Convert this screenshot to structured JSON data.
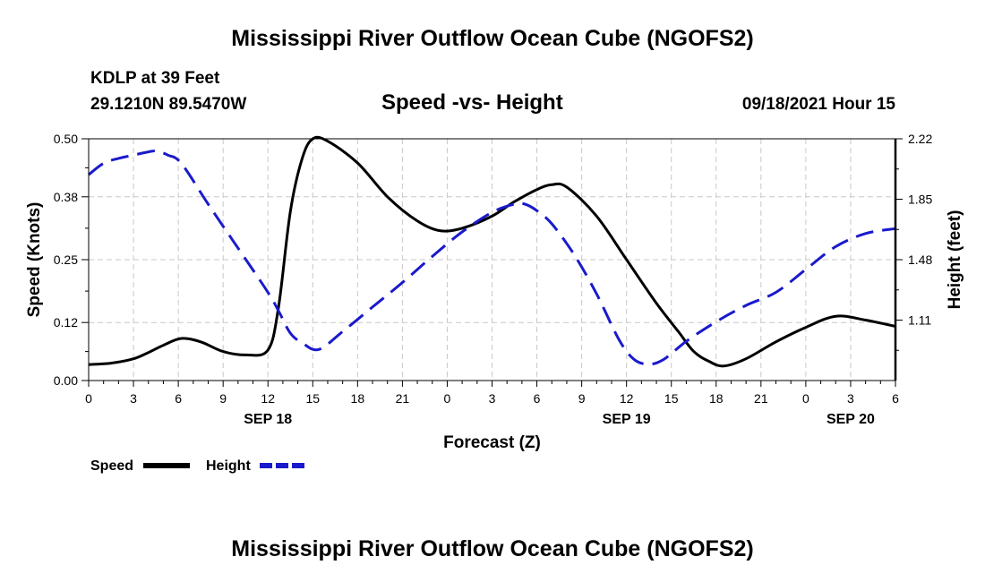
{
  "header": {
    "title": "Mississippi River Outflow Ocean Cube (NGOFS2)",
    "station": "KDLP at 39 Feet",
    "coords": "29.1210N  89.5470W",
    "chart_title": "Speed -vs- Height",
    "datetime": "09/18/2021 Hour 15"
  },
  "footer": {
    "title": "Mississippi River Outflow Ocean Cube (NGOFS2)"
  },
  "colors": {
    "speed": "#000000",
    "height": "#1a1acc",
    "grid": "#c8c8c8"
  },
  "chart_data": {
    "type": "line",
    "title": "Speed -vs- Height",
    "xlabel": "Forecast (Z)",
    "ylabel": "Speed (Knots)",
    "y2label": "Height (feet)",
    "x_range_hours": [
      0,
      54
    ],
    "x_tick_hours": [
      0,
      3,
      6,
      9,
      12,
      15,
      18,
      21,
      24,
      27,
      30,
      33,
      36,
      39,
      42,
      45,
      48,
      51,
      54
    ],
    "x_tick_labels": [
      "0",
      "3",
      "6",
      "9",
      "12",
      "15",
      "18",
      "21",
      "0",
      "3",
      "6",
      "9",
      "12",
      "15",
      "18",
      "21",
      "0",
      "3",
      "6"
    ],
    "date_labels": [
      {
        "hour": 12,
        "label": "SEP 18"
      },
      {
        "hour": 36,
        "label": "SEP 19"
      },
      {
        "hour": 51,
        "label": "SEP 20"
      }
    ],
    "ylim": [
      0.0,
      0.5
    ],
    "y_ticks": [
      0.0,
      0.12,
      0.25,
      0.38,
      0.5
    ],
    "y_tick_labels": [
      "0.00",
      "0.12",
      "0.25",
      "0.38",
      "0.50"
    ],
    "y2lim": [
      0.74,
      2.22
    ],
    "y2_ticks": [
      1.11,
      1.48,
      1.85,
      2.22
    ],
    "y2_tick_labels": [
      "1.11",
      "1.48",
      "1.85",
      "2.22"
    ],
    "series": [
      {
        "name": "Speed",
        "axis": "left",
        "style": "solid",
        "x": [
          0,
          1.5,
          3,
          4,
          5,
          6.2,
          7.5,
          9,
          10.5,
          12,
          12.7,
          13.5,
          14.3,
          15,
          16,
          18,
          20,
          22,
          23.5,
          25,
          27,
          28.5,
          30,
          31,
          32,
          34,
          36,
          38,
          39.5,
          40.5,
          41.5,
          42.5,
          44,
          46,
          48,
          50,
          52,
          54
        ],
        "y": [
          0.033,
          0.036,
          0.045,
          0.058,
          0.073,
          0.087,
          0.08,
          0.06,
          0.053,
          0.063,
          0.15,
          0.35,
          0.46,
          0.5,
          0.495,
          0.45,
          0.38,
          0.33,
          0.31,
          0.315,
          0.34,
          0.37,
          0.395,
          0.405,
          0.4,
          0.34,
          0.25,
          0.16,
          0.1,
          0.06,
          0.04,
          0.03,
          0.045,
          0.08,
          0.11,
          0.133,
          0.125,
          0.112
        ]
      },
      {
        "name": "Height",
        "axis": "right",
        "style": "dashed",
        "x": [
          0,
          1,
          2,
          3,
          4,
          4.6,
          5.3,
          6.2,
          8,
          10,
          12,
          12.8,
          13.5,
          14.3,
          15.4,
          17,
          19,
          21,
          23,
          25,
          27,
          28.5,
          29.2,
          30,
          31,
          32.5,
          34,
          35.5,
          36.5,
          37.5,
          38.5,
          40,
          42,
          44,
          46,
          48,
          50,
          52,
          54
        ],
        "y": [
          2.0,
          2.07,
          2.1,
          2.12,
          2.14,
          2.145,
          2.12,
          2.07,
          1.82,
          1.55,
          1.28,
          1.15,
          1.03,
          0.97,
          0.93,
          1.04,
          1.19,
          1.34,
          1.5,
          1.65,
          1.77,
          1.82,
          1.82,
          1.78,
          1.7,
          1.51,
          1.27,
          0.99,
          0.87,
          0.84,
          0.87,
          0.98,
          1.1,
          1.2,
          1.28,
          1.42,
          1.56,
          1.64,
          1.67
        ]
      }
    ],
    "legend": [
      {
        "name": "Speed",
        "style": "solid"
      },
      {
        "name": "Height",
        "style": "dashed"
      }
    ],
    "legend_position": "bottom-left",
    "grid": true
  }
}
